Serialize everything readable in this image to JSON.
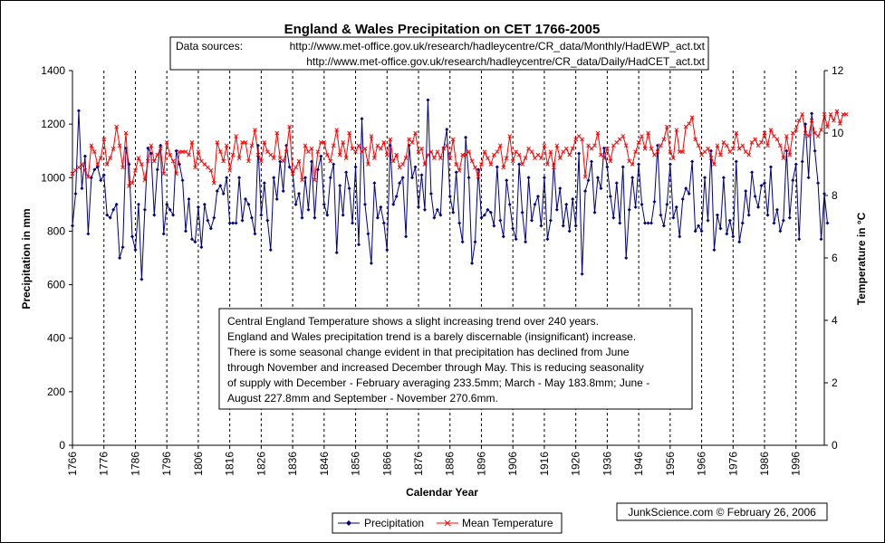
{
  "chart_data": {
    "type": "line",
    "title": "England & Wales Precipitation on CET 1766-2005",
    "sources_prefix": "Data sources:",
    "sources": [
      "http://www.met-office.gov.uk/research/hadleycentre/CR_data/Monthly/HadEWP_act.txt",
      "http://www.met-office.gov.uk/research/hadleycentre/CR_data/Daily/HadCET_act.txt"
    ],
    "xlabel": "Calendar Year",
    "ylabel": "Precipitation in mm",
    "y2label": "Temperature in °C",
    "xlim": [
      1766,
      2005
    ],
    "ylim": [
      0,
      1400
    ],
    "y2lim": [
      0,
      12
    ],
    "x_ticks": [
      "1766",
      "1776",
      "1786",
      "1796",
      "1806",
      "1816",
      "1826",
      "1836",
      "1846",
      "1856",
      "1866",
      "1876",
      "1886",
      "1896",
      "1906",
      "1916",
      "1926",
      "1936",
      "1946",
      "1956",
      "1966",
      "1976",
      "1986",
      "1996"
    ],
    "y_ticks": [
      "0",
      "200",
      "400",
      "600",
      "800",
      "1000",
      "1200",
      "1400"
    ],
    "y2_ticks": [
      "0",
      "2",
      "4",
      "6",
      "8",
      "10",
      "12"
    ],
    "vgrid": "dashed",
    "annotation": [
      "Central England Temperature shows a slight increasing trend over 240 years.",
      "England and Wales precipitation trend is a barely discernable (insignificant) increase.",
      "There is some seasonal change evident in that precipitation has declined from June",
      "through November and increased December through May. This is reducing seasonality",
      "of supply with December - February averaging 233.5mm; March - May 183.8mm; June -",
      "August 227.8mm and September - November 270.6mm."
    ],
    "credit": "JunkScience.com © February 26, 2006",
    "legend_position": "bottom",
    "series": [
      {
        "name": "Precipitation",
        "axis": "left",
        "color": "#000080",
        "marker": "diamond",
        "x_start": 1766,
        "x_step": 1,
        "values": [
          820,
          940,
          1250,
          960,
          1080,
          790,
          1000,
          1030,
          1040,
          990,
          1010,
          860,
          850,
          880,
          900,
          700,
          740,
          1110,
          1050,
          780,
          730,
          900,
          620,
          880,
          1110,
          1090,
          860,
          1030,
          1120,
          790,
          900,
          880,
          860,
          1100,
          1050,
          990,
          800,
          920,
          770,
          760,
          890,
          740,
          900,
          840,
          810,
          850,
          950,
          970,
          940,
          1000,
          830,
          830,
          830,
          1000,
          840,
          920,
          900,
          850,
          790,
          1120,
          860,
          980,
          840,
          730,
          1000,
          920,
          1060,
          950,
          1120,
          1040,
          1020,
          900,
          940,
          850,
          1000,
          880,
          1060,
          850,
          1030,
          1080,
          900,
          860,
          1000,
          1050,
          720,
          970,
          860,
          1020,
          960,
          830,
          1040,
          750,
          1220,
          900,
          790,
          680,
          980,
          850,
          890,
          830,
          730,
          1120,
          900,
          930,
          980,
          1000,
          780,
          1120,
          1000,
          1040,
          890,
          1010,
          880,
          1290,
          940,
          850,
          880,
          860,
          1110,
          1180,
          930,
          870,
          1020,
          830,
          760,
          1150,
          1000,
          680,
          760,
          1030,
          850,
          860,
          880,
          870,
          820,
          1040,
          840,
          780,
          990,
          900,
          810,
          770,
          1050,
          870,
          760,
          1000,
          840,
          900,
          930,
          820,
          1000,
          770,
          840,
          1050,
          880,
          960,
          820,
          900,
          800,
          920,
          820,
          1090,
          640,
          950,
          990,
          1060,
          870,
          1000,
          960,
          1110,
          1040,
          930,
          850,
          980,
          830,
          1040,
          700,
          880,
          1000,
          890,
          1050,
          900,
          830,
          830,
          830,
          910,
          1120,
          860,
          820,
          900,
          1050,
          850,
          890,
          780,
          920,
          960,
          940,
          1060,
          800,
          820,
          800,
          1000,
          840,
          1100,
          730,
          860,
          810,
          1000,
          790,
          840,
          780,
          1060,
          760,
          830,
          950,
          860,
          1020,
          930,
          890,
          970,
          980,
          860,
          1040,
          830,
          880,
          800,
          840,
          1100,
          850,
          990,
          1050,
          770,
          1060,
          1200,
          1000,
          1240,
          1100,
          980,
          770,
          940,
          830
        ]
      },
      {
        "name": "Mean Temperature",
        "axis": "right",
        "color": "#ff0000",
        "marker": "x",
        "x_start": 1766,
        "x_step": 1,
        "values": [
          8.7,
          8.8,
          8.9,
          9.0,
          8.8,
          8.6,
          9.6,
          9.4,
          9.0,
          9.2,
          9.8,
          9.0,
          9.2,
          9.5,
          10.2,
          9.6,
          8.9,
          10.0,
          8.3,
          8.4,
          8.8,
          9.2,
          9.0,
          8.5,
          9.1,
          9.6,
          9.1,
          9.3,
          9.5,
          8.7,
          9.7,
          9.3,
          9.1,
          8.7,
          9.4,
          9.4,
          9.4,
          9.3,
          9.7,
          8.9,
          9.4,
          9.1,
          9.0,
          8.9,
          8.8,
          8.4,
          9.7,
          9.4,
          9.1,
          9.6,
          8.8,
          9.3,
          9.9,
          9.2,
          9.7,
          9.7,
          9.1,
          9.6,
          10.1,
          9.3,
          9.1,
          9.7,
          9.4,
          9.3,
          9.2,
          10.0,
          9.2,
          9.1,
          9.4,
          10.2,
          8.7,
          8.9,
          9.1,
          8.5,
          9.6,
          9.4,
          9.5,
          8.5,
          9.4,
          9.7,
          9.7,
          9.3,
          9.1,
          9.6,
          10.1,
          9.3,
          9.7,
          9.2,
          10.0,
          9.5,
          9.4,
          9.6,
          9.4,
          9.5,
          9.0,
          9.9,
          9.2,
          9.6,
          9.5,
          9.7,
          9.3,
          9.8,
          9.1,
          9.3,
          8.9,
          9.0,
          9.2,
          9.8,
          9.7,
          10.0,
          9.4,
          9.5,
          9.0,
          9.3,
          9.4,
          9.2,
          9.4,
          9.2,
          9.5,
          9.6,
          9.2,
          9.8,
          9.0,
          8.8,
          9.3,
          9.3,
          9.4,
          9.1,
          8.9,
          8.6,
          9.0,
          9.4,
          9.2,
          9.0,
          9.3,
          9.4,
          9.6,
          8.9,
          9.2,
          9.9,
          9.1,
          9.4,
          9.3,
          9.0,
          9.2,
          9.5,
          9.4,
          9.2,
          9.3,
          9.2,
          9.6,
          9.0,
          9.4,
          8.9,
          9.6,
          9.2,
          9.4,
          9.5,
          9.3,
          9.5,
          9.8,
          9.9,
          9.8,
          8.6,
          9.6,
          9.5,
          9.6,
          10.0,
          9.3,
          9.2,
          9.5,
          9.1,
          9.6,
          9.7,
          9.8,
          9.9,
          9.6,
          9.1,
          9.0,
          9.4,
          9.7,
          9.9,
          9.5,
          10.0,
          9.5,
          9.3,
          9.4,
          9.6,
          9.8,
          10.2,
          9.4,
          9.2,
          10.1,
          9.4,
          9.4,
          10.2,
          10.3,
          10.5,
          9.8,
          9.6,
          9.3,
          9.4,
          9.5,
          9.2,
          9.0,
          9.6,
          9.3,
          9.7,
          9.6,
          9.4,
          9.5,
          10.0,
          9.5,
          9.6,
          9.4,
          9.3,
          9.7,
          9.8,
          9.6,
          9.7,
          10.0,
          9.6,
          10.1,
          9.9,
          9.8,
          9.6,
          9.2,
          9.9,
          9.3,
          10.0,
          10.1,
          10.4,
          10.6,
          10.0,
          9.9,
          10.4,
          10.0,
          9.9,
          10.1,
          10.6,
          10.2,
          10.6,
          10.4,
          10.7,
          10.3,
          10.6,
          10.6
        ]
      }
    ]
  }
}
